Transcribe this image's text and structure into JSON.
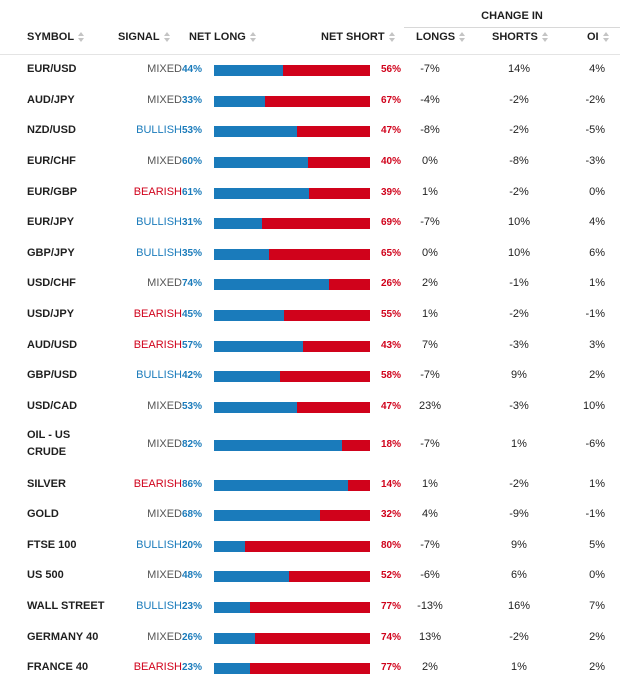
{
  "header": {
    "change_in": "CHANGE IN",
    "symbol": "SYMBOL",
    "signal": "SIGNAL",
    "net_long": "NET LONG",
    "net_short": "NET SHORT",
    "longs": "LONGS",
    "shorts": "SHORTS",
    "oi": "OI"
  },
  "colors": {
    "long_blue": "#1a7bbb",
    "short_red": "#d0021b",
    "mixed_gray": "#555555"
  },
  "rows": [
    {
      "symbol": "EUR/USD",
      "signal": "MIXED",
      "net_long": "44%",
      "net_short": "56%",
      "long_pct": 44,
      "longs": "-7%",
      "shorts": "14%",
      "oi": "4%"
    },
    {
      "symbol": "AUD/JPY",
      "signal": "MIXED",
      "net_long": "33%",
      "net_short": "67%",
      "long_pct": 33,
      "longs": "-4%",
      "shorts": "-2%",
      "oi": "-2%"
    },
    {
      "symbol": "NZD/USD",
      "signal": "BULLISH",
      "net_long": "53%",
      "net_short": "47%",
      "long_pct": 53,
      "longs": "-8%",
      "shorts": "-2%",
      "oi": "-5%"
    },
    {
      "symbol": "EUR/CHF",
      "signal": "MIXED",
      "net_long": "60%",
      "net_short": "40%",
      "long_pct": 60,
      "longs": "0%",
      "shorts": "-8%",
      "oi": "-3%"
    },
    {
      "symbol": "EUR/GBP",
      "signal": "BEARISH",
      "net_long": "61%",
      "net_short": "39%",
      "long_pct": 61,
      "longs": "1%",
      "shorts": "-2%",
      "oi": "0%"
    },
    {
      "symbol": "EUR/JPY",
      "signal": "BULLISH",
      "net_long": "31%",
      "net_short": "69%",
      "long_pct": 31,
      "longs": "-7%",
      "shorts": "10%",
      "oi": "4%"
    },
    {
      "symbol": "GBP/JPY",
      "signal": "BULLISH",
      "net_long": "35%",
      "net_short": "65%",
      "long_pct": 35,
      "longs": "0%",
      "shorts": "10%",
      "oi": "6%"
    },
    {
      "symbol": "USD/CHF",
      "signal": "MIXED",
      "net_long": "74%",
      "net_short": "26%",
      "long_pct": 74,
      "longs": "2%",
      "shorts": "-1%",
      "oi": "1%"
    },
    {
      "symbol": "USD/JPY",
      "signal": "BEARISH",
      "net_long": "45%",
      "net_short": "55%",
      "long_pct": 45,
      "longs": "1%",
      "shorts": "-2%",
      "oi": "-1%"
    },
    {
      "symbol": "AUD/USD",
      "signal": "BEARISH",
      "net_long": "57%",
      "net_short": "43%",
      "long_pct": 57,
      "longs": "7%",
      "shorts": "-3%",
      "oi": "3%"
    },
    {
      "symbol": "GBP/USD",
      "signal": "BULLISH",
      "net_long": "42%",
      "net_short": "58%",
      "long_pct": 42,
      "longs": "-7%",
      "shorts": "9%",
      "oi": "2%"
    },
    {
      "symbol": "USD/CAD",
      "signal": "MIXED",
      "net_long": "53%",
      "net_short": "47%",
      "long_pct": 53,
      "longs": "23%",
      "shorts": "-3%",
      "oi": "10%"
    },
    {
      "symbol": "OIL - US CRUDE",
      "signal": "MIXED",
      "net_long": "82%",
      "net_short": "18%",
      "long_pct": 82,
      "longs": "-7%",
      "shorts": "1%",
      "oi": "-6%"
    },
    {
      "symbol": "SILVER",
      "signal": "BEARISH",
      "net_long": "86%",
      "net_short": "14%",
      "long_pct": 86,
      "longs": "1%",
      "shorts": "-2%",
      "oi": "1%"
    },
    {
      "symbol": "GOLD",
      "signal": "MIXED",
      "net_long": "68%",
      "net_short": "32%",
      "long_pct": 68,
      "longs": "4%",
      "shorts": "-9%",
      "oi": "-1%"
    },
    {
      "symbol": "FTSE 100",
      "signal": "BULLISH",
      "net_long": "20%",
      "net_short": "80%",
      "long_pct": 20,
      "longs": "-7%",
      "shorts": "9%",
      "oi": "5%"
    },
    {
      "symbol": "US 500",
      "signal": "MIXED",
      "net_long": "48%",
      "net_short": "52%",
      "long_pct": 48,
      "longs": "-6%",
      "shorts": "6%",
      "oi": "0%"
    },
    {
      "symbol": "WALL STREET",
      "signal": "BULLISH",
      "net_long": "23%",
      "net_short": "77%",
      "long_pct": 23,
      "longs": "-13%",
      "shorts": "16%",
      "oi": "7%"
    },
    {
      "symbol": "GERMANY 40",
      "signal": "MIXED",
      "net_long": "26%",
      "net_short": "74%",
      "long_pct": 26,
      "longs": "13%",
      "shorts": "-2%",
      "oi": "2%"
    },
    {
      "symbol": "FRANCE 40",
      "signal": "BEARISH",
      "net_long": "23%",
      "net_short": "77%",
      "long_pct": 23,
      "longs": "2%",
      "shorts": "1%",
      "oi": "2%"
    }
  ]
}
